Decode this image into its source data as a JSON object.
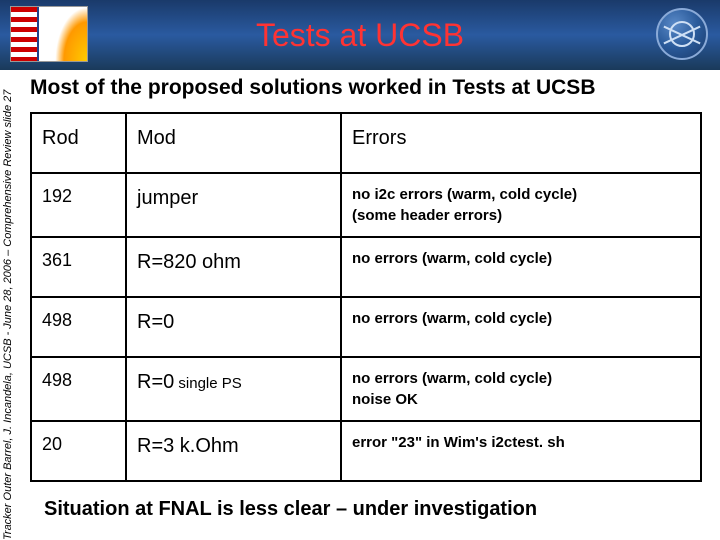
{
  "header": {
    "title": "Tests at UCSB"
  },
  "side_citation": "Tracker Outer Barrel, J. Incandela, UCSB - June 28, 2006 – Comprehensive Review  slide 27",
  "lead_text": "Most of the proposed solutions worked in Tests at UCSB",
  "table": {
    "columns": [
      "Rod",
      "Mod",
      "Errors"
    ],
    "rows": [
      {
        "rod": "192",
        "mod_main": "jumper",
        "mod_sub": "",
        "errors": "no i2c errors (warm, cold cycle)\n(some header errors)"
      },
      {
        "rod": "361",
        "mod_main": "R=820 ohm",
        "mod_sub": "",
        "errors": "no errors (warm, cold cycle)"
      },
      {
        "rod": "498",
        "mod_main": "R=0",
        "mod_sub": "",
        "errors": "no errors (warm, cold cycle)"
      },
      {
        "rod": "498",
        "mod_main": "R=0",
        "mod_sub": " single PS",
        "errors": "no errors (warm, cold cycle)\nnoise OK"
      },
      {
        "rod": "20",
        "mod_main": "R=3 k.Ohm",
        "mod_sub": "",
        "errors": "error \"23\" in Wim's i2ctest. sh"
      }
    ]
  },
  "footer_note": "Situation at FNAL is less clear – under investigation",
  "colors": {
    "title": "#ff3333",
    "header_gradient_top": "#1a3a6a",
    "header_gradient_mid": "#2a5aa0",
    "text": "#000000",
    "border": "#000000",
    "background": "#ffffff"
  },
  "typography": {
    "title_fontsize": 32,
    "lead_fontsize": 21,
    "table_header_fontsize": 20,
    "table_cell_fontsize": 18,
    "error_fontsize": 15,
    "side_fontsize": 11,
    "footer_fontsize": 20
  }
}
